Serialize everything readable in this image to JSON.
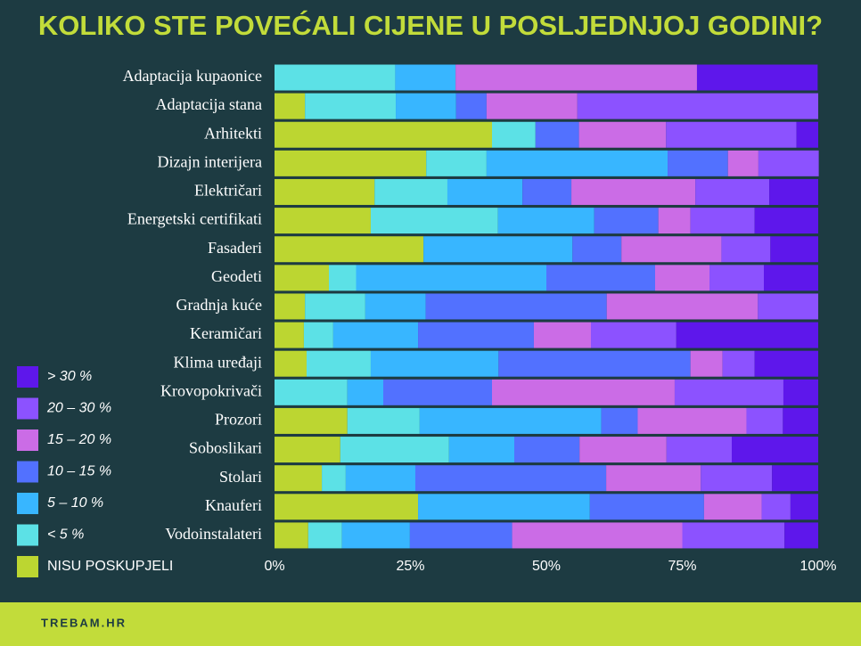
{
  "chart_data": {
    "type": "stacked-barh",
    "title": "KOLIKO STE POVEĆALI CIJENE U POSLJEDNJOJ GODINI?",
    "categories": [
      "Adaptacija kupaonice",
      "Adaptacija stana",
      "Arhitekti",
      "Dizajn interijera",
      "Električari",
      "Energetski certifikati",
      "Fasaderi",
      "Geodeti",
      "Gradnja kuće",
      "Keramičari",
      "Klima uređaji",
      "Krovopokrivači",
      "Prozori",
      "Soboslikari",
      "Stolari",
      "Knauferi",
      "Vodoinstalateri"
    ],
    "series": [
      {
        "name": "NISU POSKUPJELI",
        "color": "#bcd631",
        "values": [
          0,
          5.6,
          40,
          27.9,
          18.4,
          17.7,
          27.4,
          10,
          5.6,
          5.4,
          5.9,
          0,
          13.4,
          12.1,
          8.7,
          26.4,
          6.2
        ]
      },
      {
        "name": "< 5 %",
        "color": "#5ce1e6",
        "values": [
          22.2,
          16.7,
          8,
          11.1,
          13.4,
          23.4,
          0,
          5,
          11.1,
          5.4,
          11.8,
          13.4,
          13.3,
          20,
          4.4,
          0,
          6.2
        ]
      },
      {
        "name": "5 – 10 %",
        "color": "#38b6ff",
        "values": [
          11.1,
          11.1,
          0,
          33.3,
          13.8,
          17.7,
          27.4,
          35,
          11.1,
          15.6,
          23.5,
          6.6,
          33.4,
          12,
          12.8,
          31.6,
          12.5
        ]
      },
      {
        "name": "10 – 15 %",
        "color": "#5271ff",
        "values": [
          0,
          5.6,
          8,
          11.1,
          9,
          11.8,
          9,
          20,
          33.3,
          21.3,
          35.3,
          20,
          6.7,
          12,
          35.1,
          21,
          18.8
        ]
      },
      {
        "name": "15 – 20 %",
        "color": "#cb6ce6",
        "values": [
          44.4,
          16.7,
          16,
          5.6,
          22.8,
          5.9,
          18.4,
          10,
          27.8,
          10.5,
          5.9,
          33.6,
          20,
          16,
          17.4,
          10.6,
          31.3
        ]
      },
      {
        "name": "20 – 30 %",
        "color": "#8c52ff",
        "values": [
          0,
          44.3,
          24,
          11.1,
          13.6,
          11.8,
          9,
          10,
          11.1,
          15.7,
          5.9,
          20,
          6.7,
          12,
          13.1,
          5.3,
          18.8
        ]
      },
      {
        "name": "> 30 %",
        "color": "#5e17eb",
        "values": [
          22.2,
          0,
          4,
          0,
          9,
          11.7,
          8.8,
          10,
          0,
          26.1,
          11.7,
          6.4,
          6.5,
          15.9,
          8.5,
          5.1,
          6.2
        ]
      }
    ],
    "xlim": [
      0,
      100
    ],
    "xticks": [
      {
        "value": 0,
        "label": "0%"
      },
      {
        "value": 25,
        "label": "25%"
      },
      {
        "value": 50,
        "label": "50%"
      },
      {
        "value": 75,
        "label": "75%"
      },
      {
        "value": 100,
        "label": "100%"
      }
    ]
  },
  "footer": "TREBAM.HR"
}
